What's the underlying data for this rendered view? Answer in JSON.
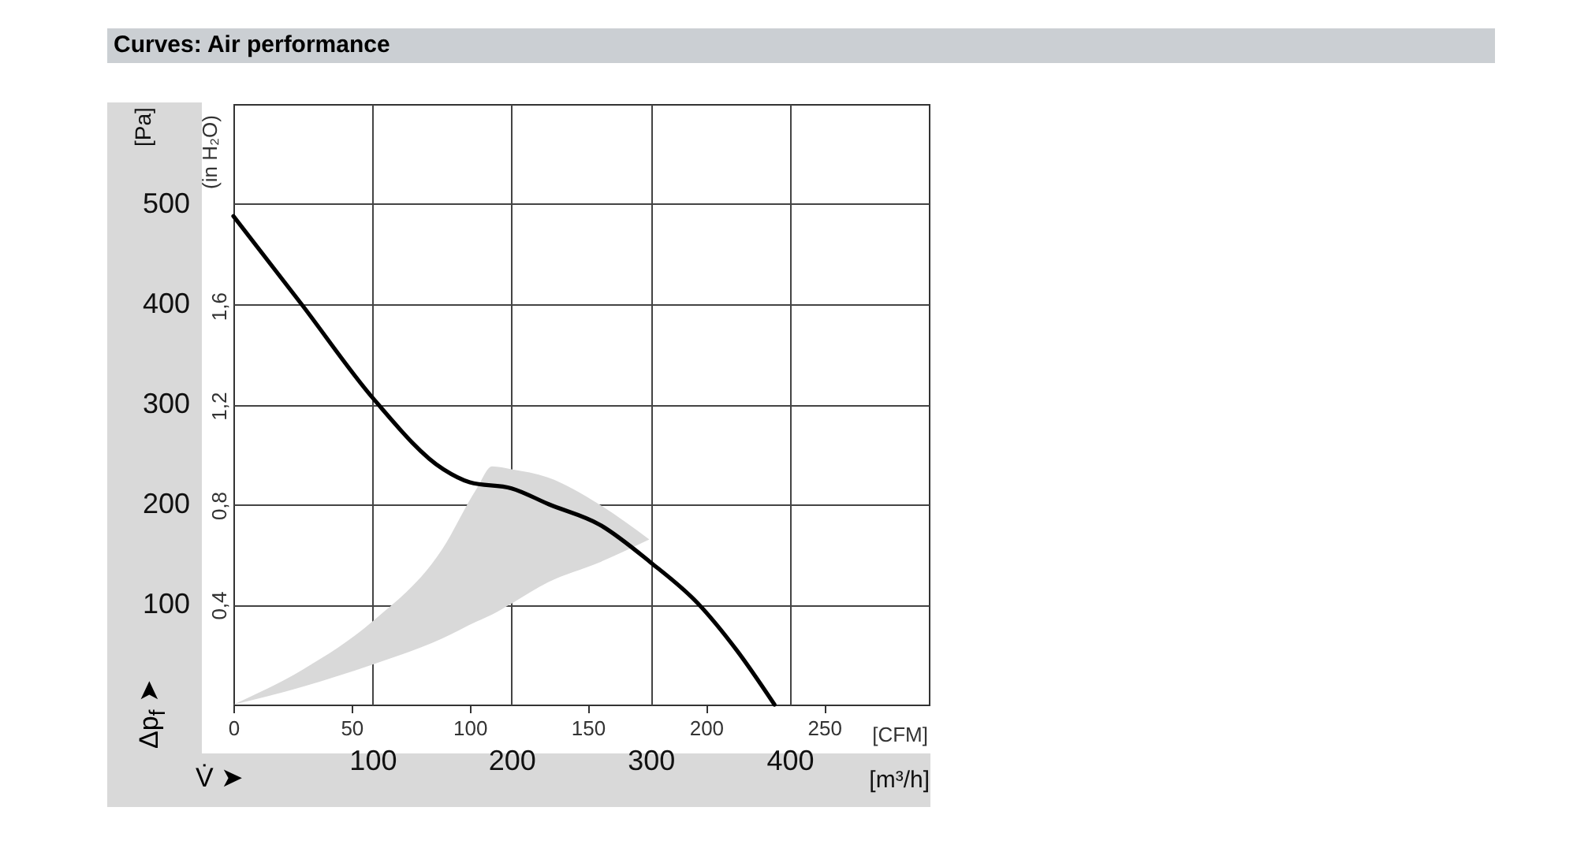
{
  "chart_data": {
    "type": "line",
    "title": "Curves: Air performance",
    "xlabel": "[m³/h]",
    "x2label": "[CFM]",
    "ylabel": "[Pa]",
    "y2label": "(in H₂O)",
    "annotations": [
      "V̇ ➤",
      "Δp$_{f}$ ➤"
    ],
    "xlim": [
      0,
      500
    ],
    "xticks": [
      100,
      200,
      300,
      400
    ],
    "x2lim": [
      0,
      294.3
    ],
    "x2ticks": [
      0,
      50,
      100,
      150,
      200,
      250
    ],
    "ylim": [
      0,
      600
    ],
    "yticks": [
      100,
      200,
      300,
      400,
      500
    ],
    "y2lim": [
      0,
      2.41
    ],
    "y2ticks": [
      {
        "value": 0.4,
        "label": "0,4"
      },
      {
        "value": 0.8,
        "label": "0,8"
      },
      {
        "value": 1.2,
        "label": "1,2"
      },
      {
        "value": 1.6,
        "label": "1,6"
      }
    ],
    "grid": true,
    "line_style": "solid",
    "series": [
      {
        "type": "area",
        "color": "#d9d9d9",
        "x": [
          0,
          50,
          100,
          150,
          175,
          186,
          200,
          226,
          263,
          299
        ],
        "values": [
          null,
          null,
          null,
          null,
          null,
          null,
          null,
          null,
          null,
          null
        ],
        "lower": [
          0,
          18,
          40,
          66,
          83,
          90,
          101,
          122,
          142,
          165
        ],
        "upper": [
          0,
          35,
          83,
          155,
          216,
          238,
          235,
          227,
          200,
          165
        ]
      },
      {
        "color": "#000000",
        "x": [
          0,
          49,
          101,
          151,
          170,
          200,
          227,
          263,
          300,
          334,
          362,
          389
        ],
        "values": [
          488,
          400,
          305,
          235,
          222,
          216,
          200,
          180,
          142,
          101,
          54,
          0
        ]
      }
    ]
  }
}
